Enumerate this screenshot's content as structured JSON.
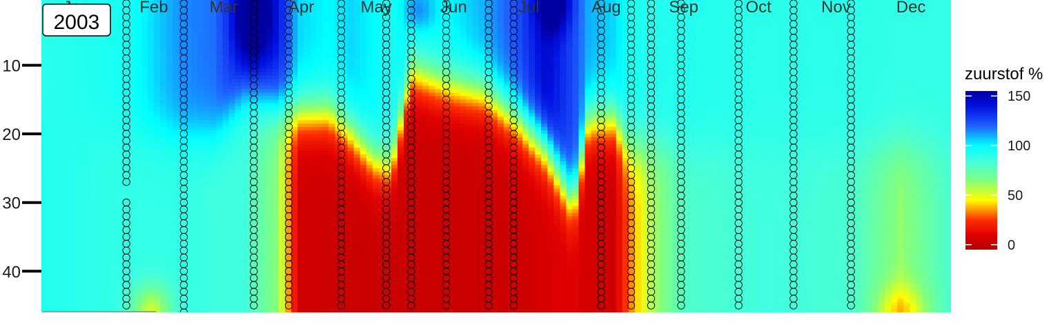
{
  "chart_data": {
    "type": "heatmap",
    "year_label": "2003",
    "x_axis": {
      "range_day_of_year": [
        1,
        365
      ],
      "tick_labels": [
        "Jan",
        "Feb",
        "Mar",
        "Apr",
        "May",
        "Jun",
        "Jul",
        "Aug",
        "Sep",
        "Oct",
        "Nov",
        "Dec"
      ],
      "tick_days": [
        15,
        46,
        74,
        105,
        135,
        166,
        196,
        227,
        258,
        288,
        319,
        349
      ]
    },
    "y_axis": {
      "range": [
        46,
        1
      ],
      "reversed": true,
      "ticks": [
        10,
        20,
        30,
        40
      ],
      "tick_labels": [
        "10",
        "20",
        "30",
        "40"
      ]
    },
    "legend": {
      "title": "zuurstof %",
      "range": [
        -5,
        155
      ],
      "ticks": [
        0,
        50,
        100,
        150
      ],
      "tick_labels": [
        "0",
        "50",
        "100",
        "150"
      ],
      "placement": "right",
      "color_stops": [
        {
          "value": -5,
          "color": "#b00000"
        },
        {
          "value": 10,
          "color": "#e00000"
        },
        {
          "value": 25,
          "color": "#ff3000"
        },
        {
          "value": 45,
          "color": "#ffff00"
        },
        {
          "value": 65,
          "color": "#80ff80"
        },
        {
          "value": 85,
          "color": "#40ffe0"
        },
        {
          "value": 100,
          "color": "#00ffff"
        },
        {
          "value": 120,
          "color": "#2060ff"
        },
        {
          "value": 140,
          "color": "#0010e0"
        },
        {
          "value": 155,
          "color": "#0000a0"
        }
      ]
    },
    "marker_color": "#000000",
    "sampling_profiles": [
      {
        "day": 6,
        "depths": [],
        "max_depth": 0
      },
      {
        "day": 35,
        "max_depth": 45,
        "gap": [
          28,
          29
        ]
      },
      {
        "day": 58,
        "max_depth": 46,
        "gap": []
      },
      {
        "day": 86,
        "max_depth": 45,
        "gap": []
      },
      {
        "day": 100,
        "max_depth": 45,
        "gap": []
      },
      {
        "day": 121,
        "max_depth": 45,
        "gap": []
      },
      {
        "day": 139,
        "max_depth": 45,
        "gap": []
      },
      {
        "day": 149,
        "max_depth": 45,
        "gap": []
      },
      {
        "day": 163,
        "max_depth": 45,
        "gap": []
      },
      {
        "day": 180,
        "max_depth": 45,
        "gap": []
      },
      {
        "day": 190,
        "max_depth": 45,
        "gap": []
      },
      {
        "day": 225,
        "max_depth": 45,
        "gap": []
      },
      {
        "day": 237,
        "max_depth": 45,
        "gap": []
      },
      {
        "day": 245,
        "max_depth": 45,
        "gap": []
      },
      {
        "day": 257,
        "max_depth": 45,
        "gap": []
      },
      {
        "day": 280,
        "max_depth": 45,
        "gap": []
      },
      {
        "day": 302,
        "max_depth": 45,
        "gap": []
      },
      {
        "day": 325,
        "max_depth": 45,
        "gap": []
      }
    ],
    "profiles": [
      {
        "day": 1,
        "surface": 90,
        "thermo": 17,
        "bottom": 92
      },
      {
        "day": 35,
        "surface": 95,
        "thermo": 20,
        "bottom": 88
      },
      {
        "day": 58,
        "surface": 115,
        "thermo": 20,
        "bottom": 88
      },
      {
        "day": 70,
        "surface": 118,
        "thermo": 20,
        "bottom": 85
      },
      {
        "day": 82,
        "surface": 140,
        "thermo": 14,
        "bottom": 85
      },
      {
        "day": 96,
        "surface": 135,
        "thermo": 16,
        "bottom": 62
      },
      {
        "day": 104,
        "surface": 105,
        "thermo": 17,
        "bottom": 5
      },
      {
        "day": 116,
        "surface": 100,
        "thermo": 17,
        "bottom": 4
      },
      {
        "day": 125,
        "surface": 105,
        "thermo": 20,
        "bottom": 3
      },
      {
        "day": 134,
        "surface": 100,
        "thermo": 24,
        "bottom": 3
      },
      {
        "day": 141,
        "surface": 95,
        "thermo": 25,
        "bottom": 3
      },
      {
        "day": 149,
        "surface": 100,
        "thermo": 11,
        "bottom": 3
      },
      {
        "day": 163,
        "surface": 100,
        "thermo": 13,
        "bottom": 3
      },
      {
        "day": 178,
        "surface": 110,
        "thermo": 14,
        "bottom": 3
      },
      {
        "day": 192,
        "surface": 125,
        "thermo": 18,
        "bottom": 4
      },
      {
        "day": 203,
        "surface": 145,
        "thermo": 22,
        "bottom": 8
      },
      {
        "day": 214,
        "surface": 125,
        "thermo": 30,
        "bottom": 10
      },
      {
        "day": 220,
        "surface": 110,
        "thermo": 18,
        "bottom": 6
      },
      {
        "day": 230,
        "surface": 105,
        "thermo": 18,
        "bottom": 4
      },
      {
        "day": 236,
        "surface": 95,
        "thermo": 22,
        "bottom": 30
      },
      {
        "day": 244,
        "surface": 92,
        "thermo": 22,
        "bottom": 55
      },
      {
        "day": 258,
        "surface": 92,
        "thermo": 22,
        "bottom": 80
      },
      {
        "day": 290,
        "surface": 90,
        "thermo": 22,
        "bottom": 85
      },
      {
        "day": 325,
        "surface": 90,
        "thermo": 22,
        "bottom": 82
      },
      {
        "day": 345,
        "surface": 88,
        "thermo": 22,
        "bottom": 62
      },
      {
        "day": 365,
        "surface": 88,
        "thermo": 22,
        "bottom": 82
      }
    ]
  }
}
